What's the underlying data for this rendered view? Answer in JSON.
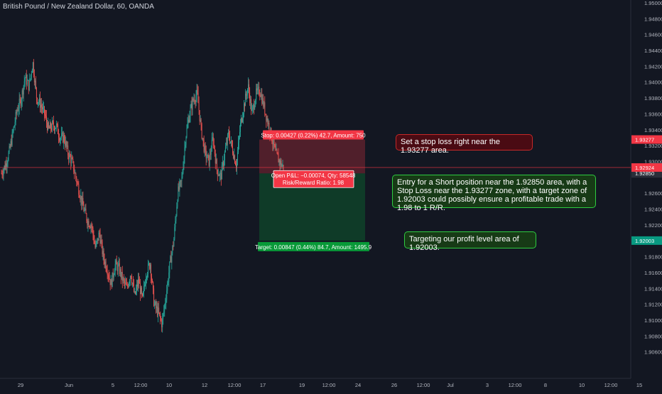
{
  "header": {
    "title": "British Pound / New Zealand Dollar, 60, OANDA"
  },
  "chart_data": {
    "type": "candlestick",
    "symbol": "British Pound / New Zealand Dollar",
    "interval": "60",
    "broker": "OANDA",
    "ylim": [
      1.904,
      1.95
    ],
    "y_ticks": [
      "1.95000",
      "1.94800",
      "1.94600",
      "1.94400",
      "1.94200",
      "1.94000",
      "1.93800",
      "1.93600",
      "1.93400",
      "1.93200",
      "1.93000",
      "1.92600",
      "1.92400",
      "1.92200",
      "1.92000",
      "1.91800",
      "1.91600",
      "1.91400",
      "1.91200",
      "1.91000",
      "1.90800",
      "1.90600"
    ],
    "x_ticks": [
      "29",
      "Jun",
      "5",
      "12:00",
      "10",
      "12",
      "12:00",
      "17",
      "19",
      "12:00",
      "24",
      "26",
      "12:00",
      "Jul",
      "3",
      "12:00",
      "8",
      "10",
      "12:00",
      "15"
    ],
    "current_price": "1.92924",
    "price_tags": [
      {
        "label": "1.93277",
        "value": 1.93277,
        "color": "#f23645"
      },
      {
        "label": "1.92850",
        "value": 1.9285,
        "color": "#2a2e39"
      },
      {
        "label": "1.92003",
        "value": 1.92003,
        "color": "#089981"
      }
    ],
    "position": {
      "side": "short",
      "entry": 1.9285,
      "stop": 1.93277,
      "target": 1.92003,
      "stop_label": "Stop: 0.00427 (0.22%) 42.7, Amount: 750",
      "target_label": "Target: 0.00847 (0.44%) 84.7, Amount: 1495.9",
      "pnl_label": "Open P&L: −0.00074, Qty: 58548",
      "rr_label": "Risk/Reward Ratio: 1.98"
    },
    "waypoints": [
      1.9285,
      1.9295,
      1.9312,
      1.9338,
      1.9365,
      1.9378,
      1.9406,
      1.9395,
      1.9425,
      1.938,
      1.9372,
      1.936,
      1.934,
      1.9345,
      1.9345,
      1.933,
      1.933,
      1.931,
      1.93,
      1.928,
      1.926,
      1.924,
      1.9225,
      1.922,
      1.919,
      1.921,
      1.918,
      1.9165,
      1.9145,
      1.917,
      1.9165,
      1.915,
      1.914,
      1.916,
      1.913,
      1.915,
      1.9125,
      1.916,
      1.9172,
      1.912,
      1.911,
      1.9095,
      1.913,
      1.917,
      1.92,
      1.926,
      1.9275,
      1.933,
      1.936,
      1.9378,
      1.9385,
      1.934,
      1.931,
      1.93,
      1.933,
      1.929,
      1.928,
      1.931,
      1.9335,
      1.9315,
      1.9295,
      1.9345,
      1.9372,
      1.9395,
      1.936,
      1.9385,
      1.939,
      1.937,
      1.935,
      1.933,
      1.931,
      1.93,
      1.9292
    ]
  },
  "notes": {
    "stop_note": "Set a stop loss right near the 1.93277 area.",
    "entry_note": "Entry for a Short position near the 1.92850 area, with a Stop Loss near the 1.93277 zone, with a target zone of 1.92003 could possibly ensure a profitable trade with a 1.98 to 1 R/R.",
    "target_note": "Targeting our profit level area of 1.92003."
  },
  "colors": {
    "up": "#26a69a",
    "down": "#ef5350",
    "background": "#131722",
    "axis_text": "#b2b5be"
  }
}
